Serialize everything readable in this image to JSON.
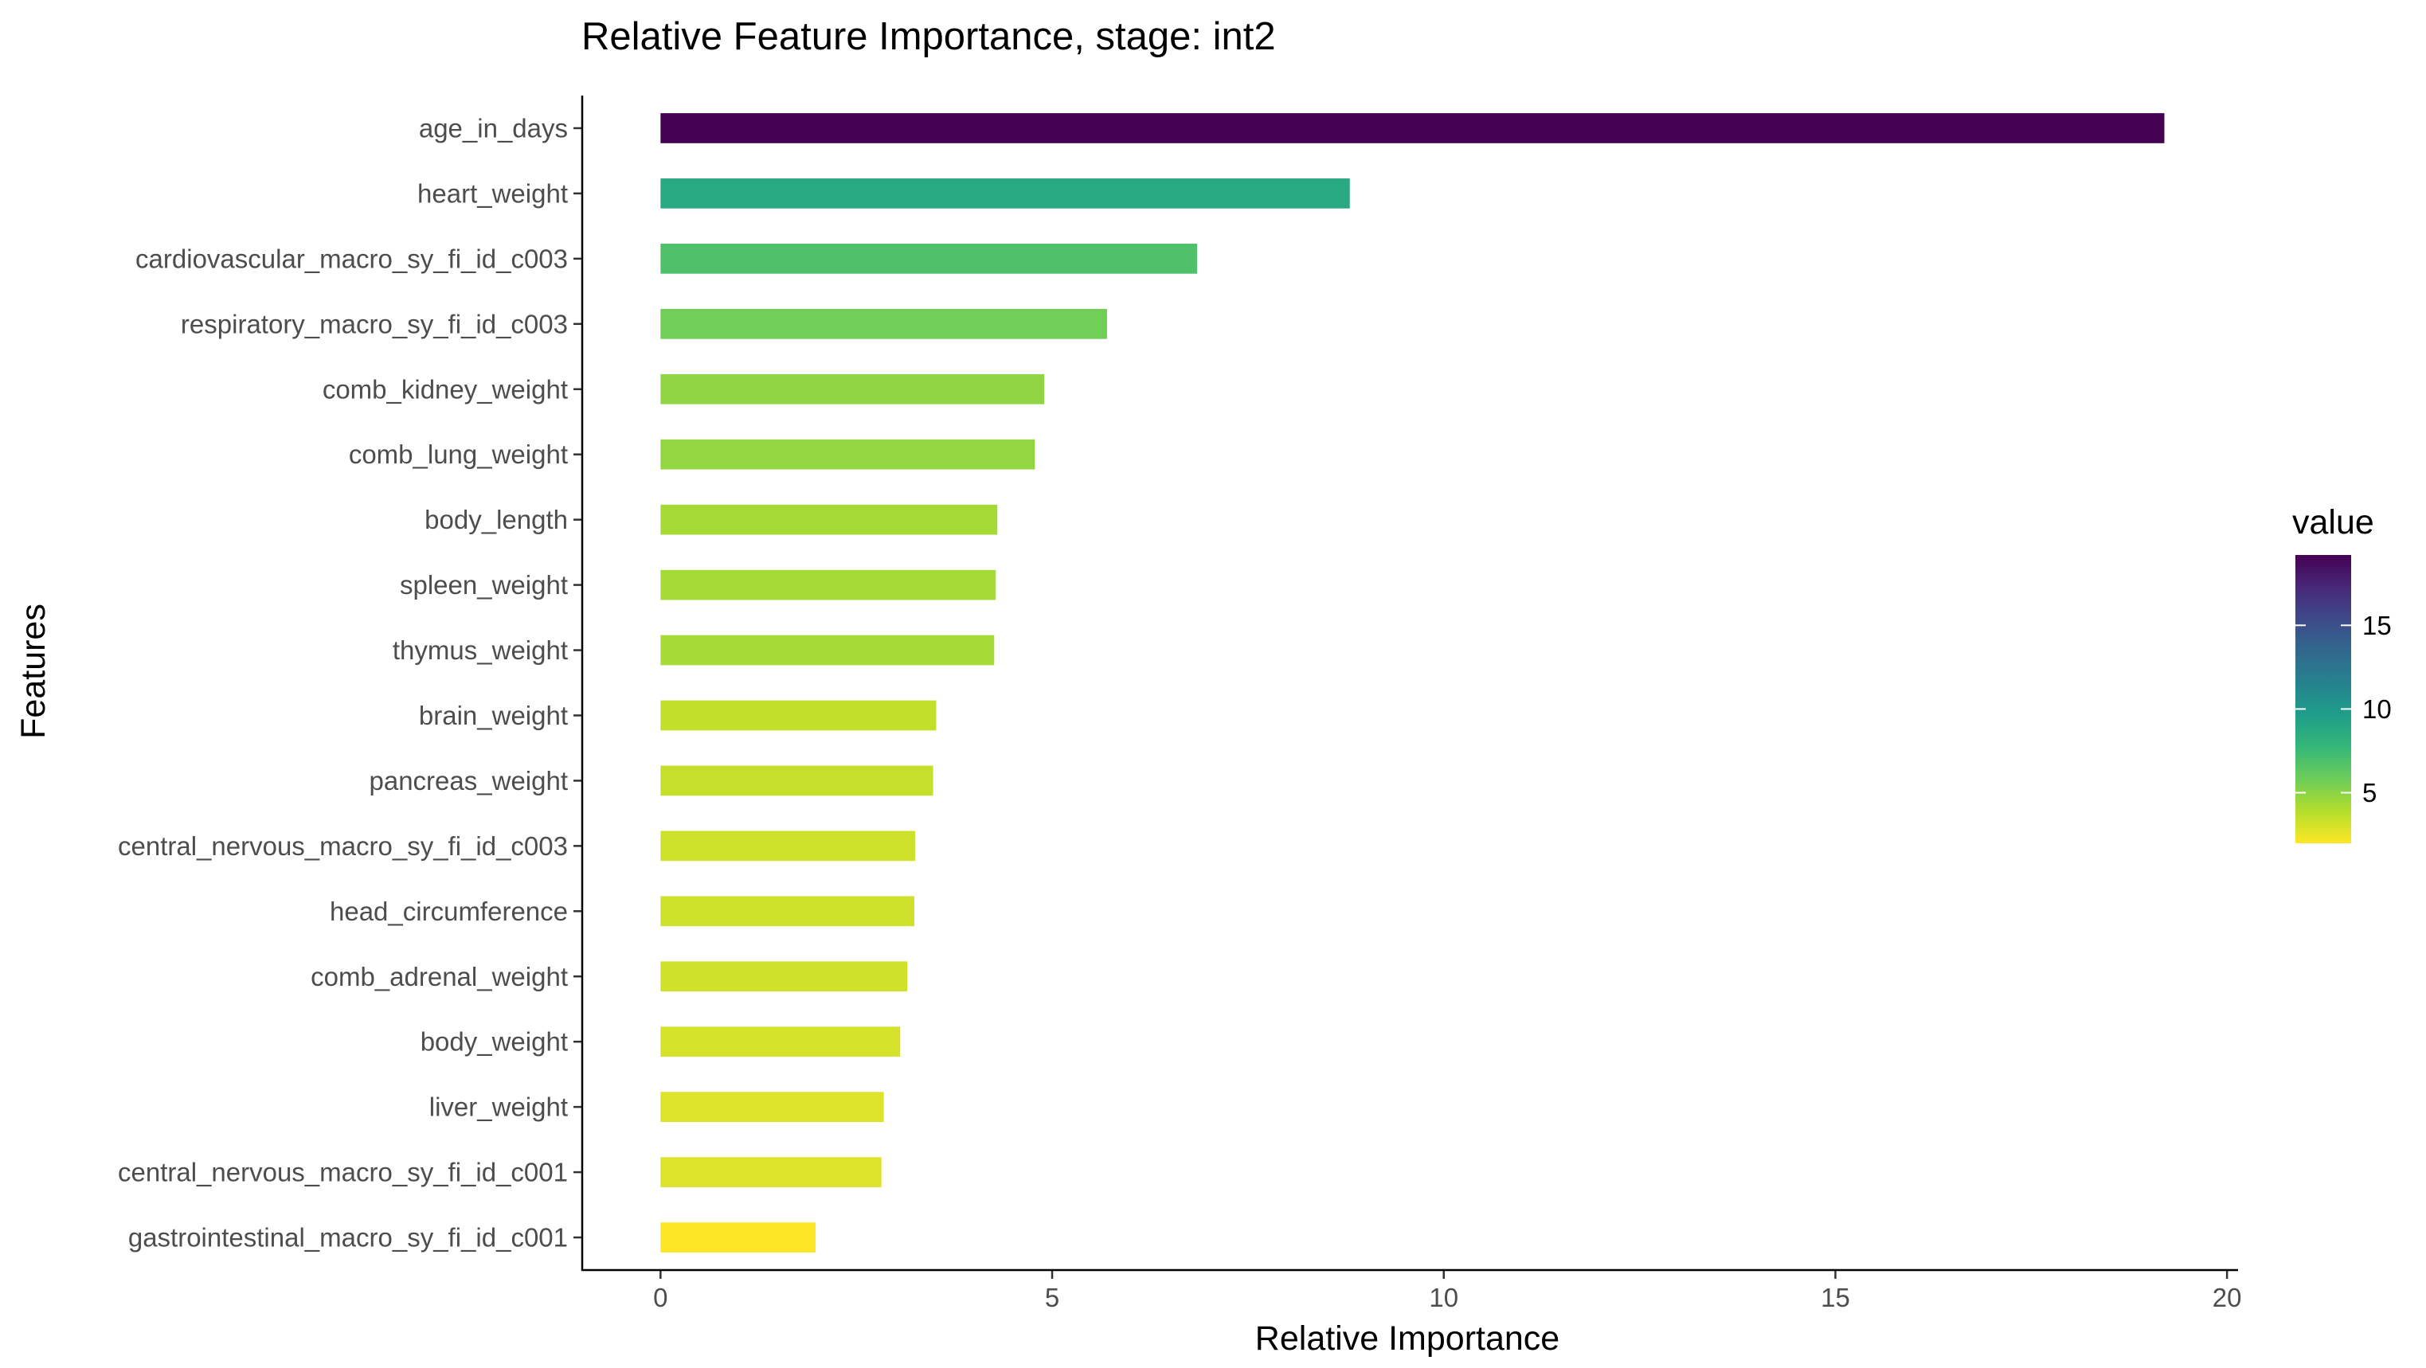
{
  "chart_data": {
    "type": "bar",
    "orientation": "horizontal",
    "title": "Relative Feature Importance, stage: int2",
    "xlabel": "Relative Importance",
    "ylabel": "Features",
    "xlim": [
      -1,
      20.1
    ],
    "x_ticks": [
      0,
      5,
      10,
      15,
      20
    ],
    "grid": false,
    "categories": [
      "age_in_days",
      "heart_weight",
      "cardiovascular_macro_sy_fi_id_c003",
      "respiratory_macro_sy_fi_id_c003",
      "comb_kidney_weight",
      "comb_lung_weight",
      "body_length",
      "spleen_weight",
      "thymus_weight",
      "brain_weight",
      "pancreas_weight",
      "central_nervous_macro_sy_fi_id_c003",
      "head_circumference",
      "comb_adrenal_weight",
      "body_weight",
      "liver_weight",
      "central_nervous_macro_sy_fi_id_c001",
      "gastrointestinal_macro_sy_fi_id_c001"
    ],
    "values": [
      19.2,
      8.8,
      6.85,
      5.7,
      4.9,
      4.78,
      4.3,
      4.28,
      4.26,
      3.52,
      3.48,
      3.25,
      3.24,
      3.15,
      3.06,
      2.85,
      2.82,
      1.98
    ],
    "color_scale": {
      "name": "viridis",
      "direction": "reversed",
      "legend_title": "value",
      "legend_position": "right",
      "domain": [
        1.98,
        19.2
      ],
      "legend_ticks": [
        5,
        10,
        15
      ],
      "stops": [
        "#FDE725",
        "#B4DE2C",
        "#6DCD59",
        "#35B779",
        "#1F9E89",
        "#26828E",
        "#31688E",
        "#3E4A89",
        "#482878",
        "#440154"
      ]
    }
  }
}
